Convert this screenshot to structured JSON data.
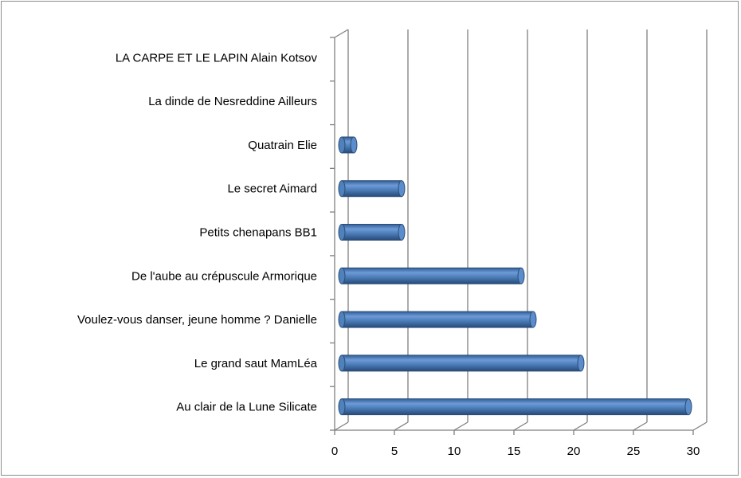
{
  "chart_data": {
    "type": "bar",
    "orientation": "horizontal",
    "style": "3d-cylinder",
    "categories": [
      "LA CARPE ET LE LAPIN Alain Kotsov",
      "La dinde de Nesreddine Ailleurs",
      "Quatrain Elie",
      "Le secret Aimard",
      "Petits chenapans BB1",
      "De l'aube au crépuscule Armorique",
      "Voulez-vous danser, jeune homme ? Danielle",
      "Le grand saut MamLéa",
      "Au clair de la Lune Silicate"
    ],
    "series": [
      {
        "values": [
          0,
          0,
          1,
          5,
          5,
          15,
          16,
          20,
          29
        ]
      }
    ],
    "xlim": [
      0,
      30
    ],
    "xticks": [
      "0",
      "5",
      "10",
      "15",
      "20",
      "25",
      "30"
    ],
    "grid": true,
    "legend": "none",
    "colors": {
      "bar": "#4f81bd",
      "bar_dark": "#2c4d75",
      "bar_light": "#a7c2e6",
      "grid": "#7f7f7f"
    }
  }
}
